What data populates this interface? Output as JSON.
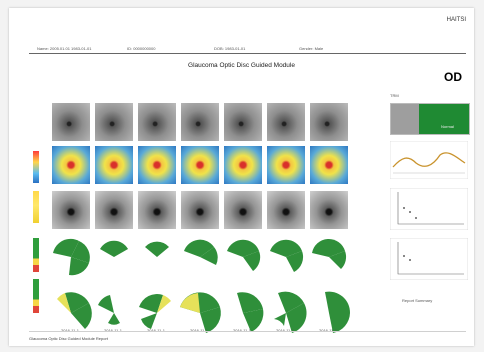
{
  "header": {
    "brand": "HAITSI",
    "fields": [
      "Name: 2005.01.01 1983-01-01",
      "ID: 0000000000",
      "DOB: 1983-01-01",
      "Gender: Male"
    ]
  },
  "report": {
    "title": "Glaucoma Optic Disc Guided Module",
    "eye": "OD"
  },
  "visits": [
    "2016-11-1",
    "2016-11-1",
    "2016-11-1",
    "2016-11-1",
    "2016-11-1",
    "2016-11-1",
    "2016-11-1"
  ],
  "right_panel": {
    "top_label": "TRM",
    "map_text": "Normal",
    "note": "Report Summary"
  },
  "footer": {
    "text": "Glaucoma Optic Disc Guided Module Report"
  }
}
